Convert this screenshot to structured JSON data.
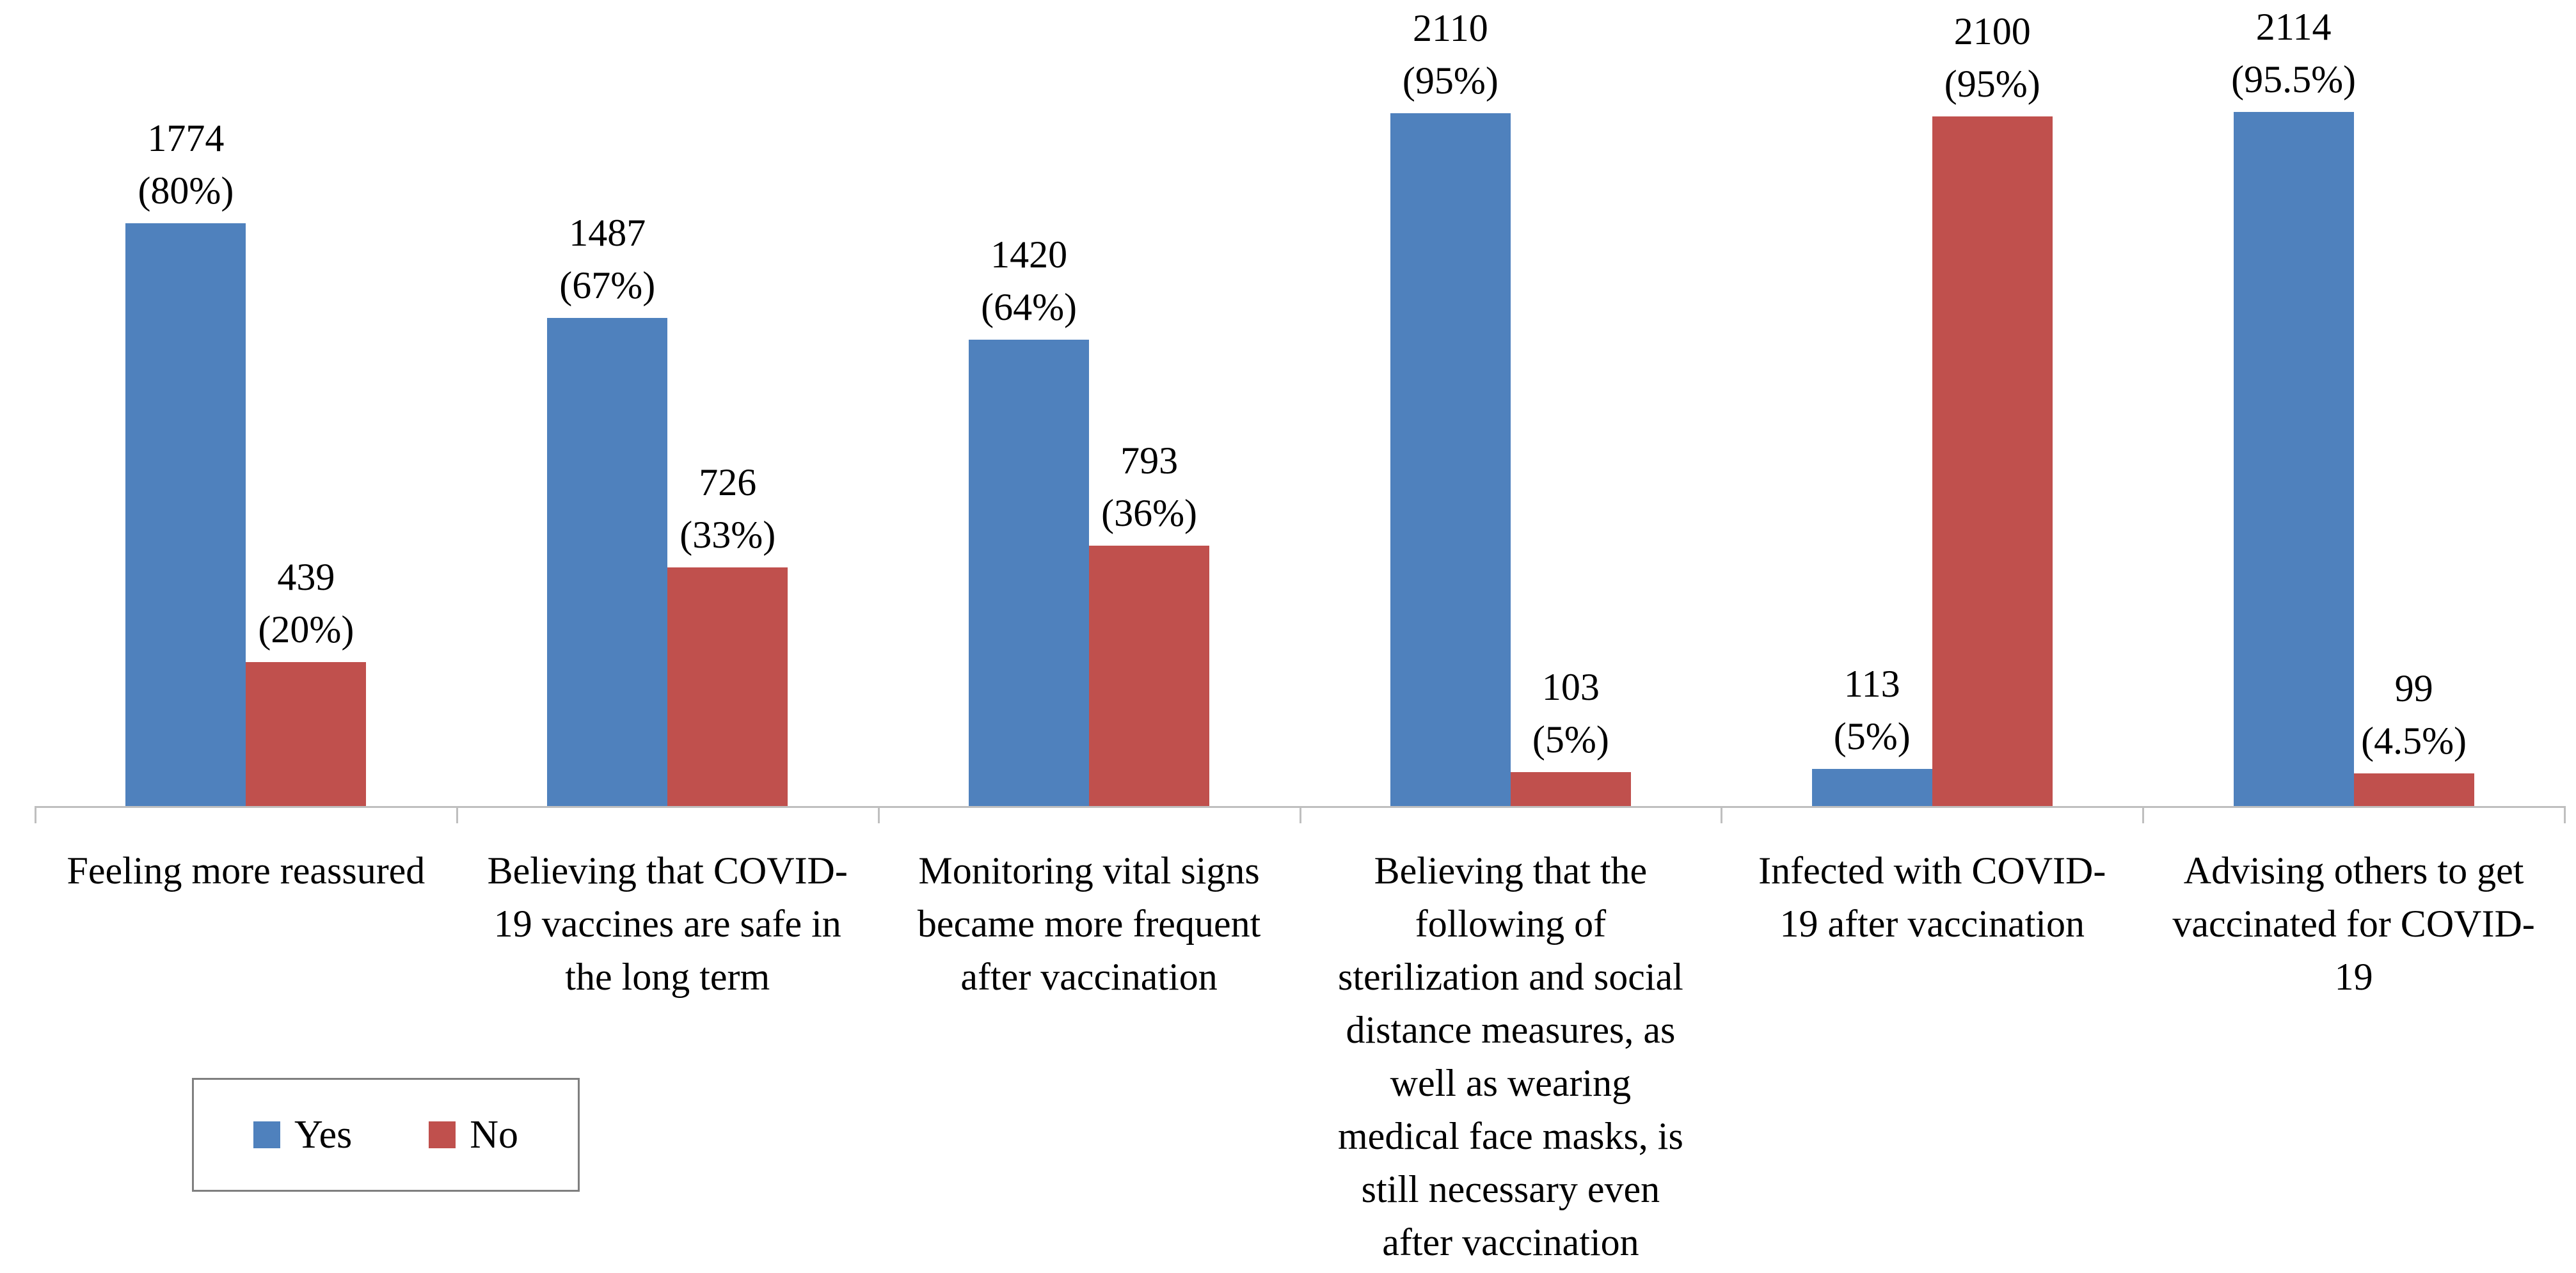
{
  "chart_data": {
    "type": "bar",
    "title": "",
    "xlabel": "",
    "ylabel": "",
    "ylim": [
      0,
      2200
    ],
    "grid": false,
    "legend_position": "bottom-left",
    "categories": [
      "Feeling more reassured",
      "Believing that COVID-19 vaccines are safe in the long term",
      "Monitoring vital signs became more frequent after vaccination",
      "Believing that the following of sterilization and social distance measures, as well as wearing medical face masks, is still necessary even after vaccination",
      "Infected with COVID-19 after vaccination",
      "Advising others to get vaccinated for COVID-19"
    ],
    "category_label_lines": [
      [
        "Feeling more reassured"
      ],
      [
        "Believing that COVID-",
        "19 vaccines are safe in",
        "the long term"
      ],
      [
        "Monitoring vital signs",
        "became more frequent",
        "after vaccination"
      ],
      [
        "Believing that the",
        "following of",
        "sterilization and social",
        "distance measures, as",
        "well as wearing",
        "medical face masks, is",
        "still necessary even",
        "after vaccination"
      ],
      [
        "Infected with COVID-",
        "19 after vaccination"
      ],
      [
        "Advising others to get",
        "vaccinated for COVID-",
        "19"
      ]
    ],
    "series": [
      {
        "name": "Yes",
        "color": "#4F81BD",
        "values": [
          1774,
          1487,
          1420,
          2110,
          113,
          2114
        ],
        "value_labels": [
          "1774",
          "1487",
          "1420",
          "2110",
          "113",
          "2114"
        ],
        "pct_labels": [
          "(80%)",
          "(67%)",
          "(64%)",
          "(95%)",
          "(5%)",
          "(95.5%)"
        ]
      },
      {
        "name": "No",
        "color": "#C0504D",
        "values": [
          439,
          726,
          793,
          103,
          2100,
          99
        ],
        "value_labels": [
          "439",
          "726",
          "793",
          "103",
          "2100",
          "99"
        ],
        "pct_labels": [
          "(20%)",
          "(33%)",
          "(36%)",
          "(5%)",
          "(95%)",
          "(4.5%)"
        ]
      }
    ]
  },
  "legend": {
    "items": [
      {
        "label": "Yes",
        "color": "#4F81BD"
      },
      {
        "label": "No",
        "color": "#C0504D"
      }
    ]
  },
  "axis": {
    "line_color": "#bfbfbf",
    "tick_color": "#bfbfbf"
  }
}
